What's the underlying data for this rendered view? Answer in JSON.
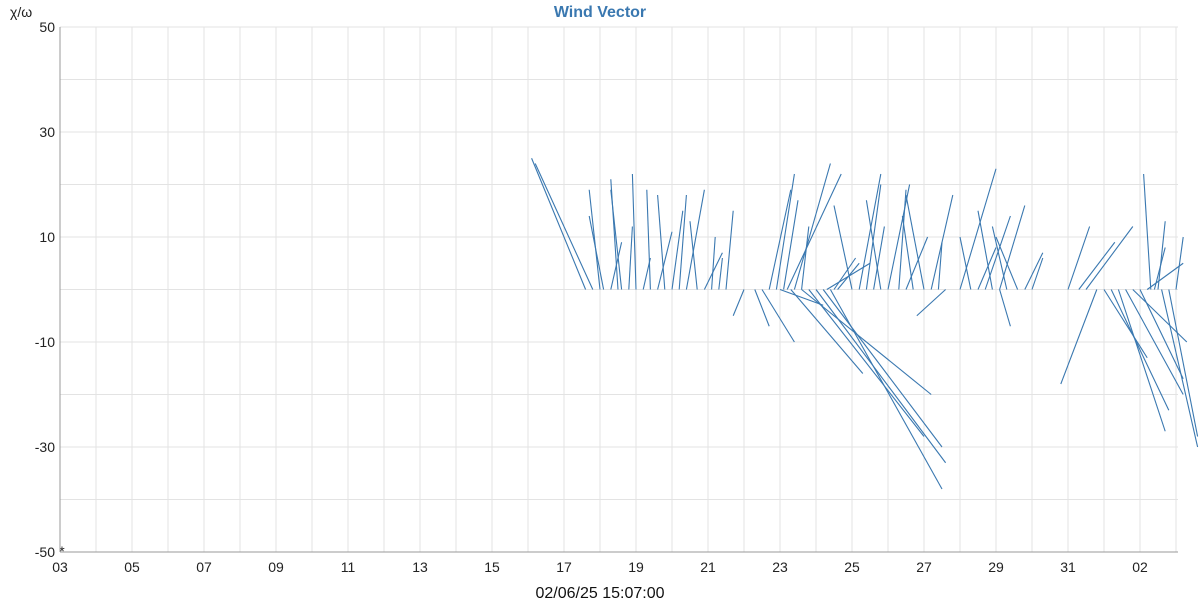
{
  "colors": {
    "vector": "#3a78b0",
    "title": "#3a78b0",
    "grid": "#e3e3e3",
    "axis": "#999999",
    "background": "#ffffff"
  },
  "chart_data": {
    "type": "line",
    "title": "Wind Vector",
    "ylabel": "χ/ω",
    "footer_text": "02/06/25 15:07:00",
    "corner_mark": "*",
    "ylim": [
      -50,
      50
    ],
    "y_ticks": [
      "50",
      "30",
      "10",
      "-10",
      "-30",
      "-50"
    ],
    "y_tick_values": [
      50,
      30,
      10,
      -10,
      -30,
      -50
    ],
    "y_grid_step": 10,
    "x_ticks": [
      "03",
      "05",
      "07",
      "09",
      "11",
      "13",
      "15",
      "17",
      "19",
      "21",
      "23",
      "25",
      "27",
      "29",
      "31",
      "02"
    ],
    "x_tick_days": [
      0,
      2,
      4,
      6,
      8,
      10,
      12,
      14,
      16,
      18,
      20,
      22,
      24,
      26,
      28,
      30
    ],
    "x_range_days": [
      0,
      31.1
    ],
    "grid": true,
    "legend": "none",
    "vectors": [
      {
        "day": 14.6,
        "u": -1.5,
        "v": 25
      },
      {
        "day": 14.8,
        "u": -1.6,
        "v": 24
      },
      {
        "day": 15.0,
        "u": -0.3,
        "v": 19
      },
      {
        "day": 15.1,
        "u": -0.4,
        "v": 14
      },
      {
        "day": 15.3,
        "u": 0.3,
        "v": 9
      },
      {
        "day": 15.5,
        "u": -0.2,
        "v": 21
      },
      {
        "day": 15.6,
        "u": -0.3,
        "v": 19
      },
      {
        "day": 15.8,
        "u": 0.1,
        "v": 12
      },
      {
        "day": 16.0,
        "u": -0.1,
        "v": 22
      },
      {
        "day": 16.2,
        "u": 0.2,
        "v": 6
      },
      {
        "day": 16.4,
        "u": -0.1,
        "v": 19
      },
      {
        "day": 16.6,
        "u": 0.4,
        "v": 11
      },
      {
        "day": 16.8,
        "u": -0.2,
        "v": 18
      },
      {
        "day": 17.0,
        "u": 0.3,
        "v": 15
      },
      {
        "day": 17.2,
        "u": 0.2,
        "v": 18
      },
      {
        "day": 17.4,
        "u": 0.5,
        "v": 19
      },
      {
        "day": 17.7,
        "u": -0.2,
        "v": 13
      },
      {
        "day": 17.9,
        "u": 0.5,
        "v": 7
      },
      {
        "day": 18.1,
        "u": 0.1,
        "v": 10
      },
      {
        "day": 18.3,
        "u": 0.1,
        "v": 6
      },
      {
        "day": 18.5,
        "u": 0.2,
        "v": 15
      },
      {
        "day": 19.0,
        "u": -0.3,
        "v": -5
      },
      {
        "day": 19.3,
        "u": 0.4,
        "v": -7
      },
      {
        "day": 19.5,
        "u": 0.9,
        "v": -10
      },
      {
        "day": 19.7,
        "u": 0.6,
        "v": 19
      },
      {
        "day": 19.9,
        "u": 0.5,
        "v": 22
      },
      {
        "day": 20.1,
        "u": 0.4,
        "v": 17
      },
      {
        "day": 20.2,
        "u": 1.5,
        "v": 22
      },
      {
        "day": 20.4,
        "u": 1.0,
        "v": 24
      },
      {
        "day": 20.6,
        "u": 0.2,
        "v": 12
      },
      {
        "day": 21.3,
        "u": 1.2,
        "v": 5
      },
      {
        "day": 21.5,
        "u": 0.6,
        "v": 6
      },
      {
        "day": 20.0,
        "u": 1.2,
        "v": -3
      },
      {
        "day": 20.3,
        "u": 2.0,
        "v": -16
      },
      {
        "day": 20.6,
        "u": 3.6,
        "v": -20
      },
      {
        "day": 20.8,
        "u": 3.2,
        "v": -28
      },
      {
        "day": 21.0,
        "u": 3.6,
        "v": -33
      },
      {
        "day": 21.2,
        "u": 3.3,
        "v": -30
      },
      {
        "day": 21.4,
        "u": 3.1,
        "v": -38
      },
      {
        "day": 21.6,
        "u": 0.6,
        "v": 5
      },
      {
        "day": 22.0,
        "u": -0.5,
        "v": 16
      },
      {
        "day": 22.2,
        "u": 0.6,
        "v": 22
      },
      {
        "day": 22.4,
        "u": 0.4,
        "v": 20
      },
      {
        "day": 22.6,
        "u": 0.3,
        "v": 12
      },
      {
        "day": 22.8,
        "u": -0.4,
        "v": 17
      },
      {
        "day": 23.0,
        "u": 0.6,
        "v": 20
      },
      {
        "day": 23.3,
        "u": 0.2,
        "v": 19
      },
      {
        "day": 23.5,
        "u": 0.6,
        "v": 10
      },
      {
        "day": 23.7,
        "u": -0.3,
        "v": 14
      },
      {
        "day": 24.0,
        "u": -0.5,
        "v": 18
      },
      {
        "day": 24.2,
        "u": 0.6,
        "v": 18
      },
      {
        "day": 24.4,
        "u": 0.1,
        "v": 9
      },
      {
        "day": 24.6,
        "u": -0.8,
        "v": -5
      },
      {
        "day": 25.0,
        "u": 1.0,
        "v": 23
      },
      {
        "day": 25.3,
        "u": -0.3,
        "v": 10
      },
      {
        "day": 25.5,
        "u": 0.5,
        "v": 8
      },
      {
        "day": 25.7,
        "u": 0.7,
        "v": 14
      },
      {
        "day": 25.9,
        "u": -0.4,
        "v": 15
      },
      {
        "day": 26.1,
        "u": 0.7,
        "v": 16
      },
      {
        "day": 26.3,
        "u": -0.4,
        "v": 12
      },
      {
        "day": 26.1,
        "u": 0.3,
        "v": -7
      },
      {
        "day": 26.6,
        "u": -0.6,
        "v": 10
      },
      {
        "day": 26.8,
        "u": 0.5,
        "v": 7
      },
      {
        "day": 27.0,
        "u": 0.3,
        "v": 6
      },
      {
        "day": 28.0,
        "u": 0.6,
        "v": 12
      },
      {
        "day": 28.3,
        "u": 1.0,
        "v": 9
      },
      {
        "day": 28.5,
        "u": 1.3,
        "v": 12
      },
      {
        "day": 28.8,
        "u": -1.0,
        "v": -18
      },
      {
        "day": 29.0,
        "u": 1.2,
        "v": -13
      },
      {
        "day": 29.2,
        "u": 1.6,
        "v": -23
      },
      {
        "day": 29.4,
        "u": 1.3,
        "v": -27
      },
      {
        "day": 29.6,
        "u": 1.6,
        "v": -20
      },
      {
        "day": 29.8,
        "u": 1.5,
        "v": -10
      },
      {
        "day": 30.0,
        "u": 1.2,
        "v": -17
      },
      {
        "day": 30.2,
        "u": 1.0,
        "v": 5
      },
      {
        "day": 30.3,
        "u": -0.2,
        "v": 22
      },
      {
        "day": 30.4,
        "u": 0.3,
        "v": 8
      },
      {
        "day": 30.5,
        "u": 0.2,
        "v": 13
      },
      {
        "day": 30.6,
        "u": 1.0,
        "v": -30
      },
      {
        "day": 30.8,
        "u": 0.8,
        "v": -28
      },
      {
        "day": 31.0,
        "u": 0.2,
        "v": 10
      }
    ]
  }
}
